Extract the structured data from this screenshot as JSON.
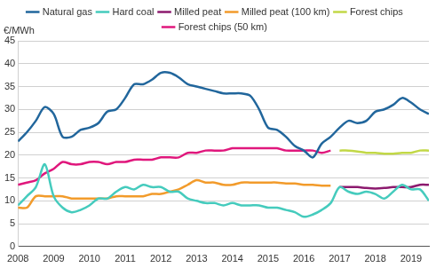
{
  "chart_data": {
    "type": "line",
    "ylabel": "€/MWh",
    "legend": "top",
    "grid": true,
    "xlim": [
      2008,
      2019.5
    ],
    "xticks": [
      2008,
      2009,
      2010,
      2011,
      2012,
      2013,
      2014,
      2015,
      2016,
      2017,
      2018,
      2019
    ],
    "ylim": [
      0,
      45
    ],
    "yticks": [
      0,
      5,
      10,
      15,
      20,
      25,
      30,
      35,
      40,
      45
    ],
    "x": [
      2008,
      2008.25,
      2008.5,
      2008.75,
      2009,
      2009.25,
      2009.5,
      2009.75,
      2010,
      2010.25,
      2010.5,
      2010.75,
      2011,
      2011.25,
      2011.5,
      2011.75,
      2012,
      2012.25,
      2012.5,
      2012.75,
      2013,
      2013.25,
      2013.5,
      2013.75,
      2014,
      2014.25,
      2014.5,
      2014.75,
      2015,
      2015.25,
      2015.5,
      2015.75,
      2016,
      2016.25,
      2016.5,
      2016.75,
      2017,
      2017.25,
      2017.5,
      2017.75,
      2018,
      2018.25,
      2018.5,
      2018.75,
      2019,
      2019.25,
      2019.5
    ],
    "series": [
      {
        "name": "Natural gas",
        "color": "#21669c",
        "line_style": "solid",
        "values": [
          23,
          25,
          27.5,
          30.5,
          29,
          24,
          24,
          25.5,
          26,
          27,
          29.5,
          30,
          32.5,
          35.5,
          35.5,
          36.5,
          38,
          38,
          37,
          35.5,
          35,
          34.5,
          34,
          33.5,
          33.5,
          33.5,
          33,
          30,
          26,
          25.5,
          24,
          22,
          21,
          19.5,
          22.5,
          24,
          26,
          27.5,
          27,
          27.5,
          29.5,
          30,
          31,
          32.5,
          31.5,
          30,
          29
        ]
      },
      {
        "name": "Hard coal",
        "color": "#45cbbd",
        "line_style": "solid",
        "values": [
          9,
          11,
          13,
          18,
          11,
          8.5,
          7.5,
          8,
          9,
          10.5,
          10.5,
          12,
          13,
          12.5,
          13.5,
          13,
          13,
          12,
          12,
          10.5,
          10,
          9.5,
          9.5,
          9,
          9.5,
          9,
          9,
          9,
          8.5,
          8.5,
          8,
          7.5,
          6.5,
          7,
          8,
          9.5,
          13,
          12,
          11.5,
          12,
          11.5,
          10.5,
          12,
          13.5,
          12.5,
          12.5,
          10
        ]
      },
      {
        "name": "Milled peat",
        "color": "#8c1a6e",
        "line_style": "solid",
        "values": [
          null,
          null,
          null,
          null,
          null,
          null,
          null,
          null,
          null,
          null,
          null,
          null,
          null,
          null,
          null,
          null,
          null,
          null,
          null,
          null,
          null,
          null,
          null,
          null,
          null,
          null,
          null,
          null,
          null,
          null,
          null,
          null,
          null,
          null,
          null,
          null,
          13,
          13,
          13,
          12.8,
          12.7,
          12.8,
          13,
          13,
          13,
          13.5,
          13.5
        ]
      },
      {
        "name": "Milled peat (100 km)",
        "color": "#f29b2b",
        "line_style": "solid",
        "values": [
          8.5,
          8.5,
          11,
          11,
          11,
          11,
          10.5,
          10.5,
          10.5,
          10.5,
          10.5,
          11,
          11,
          11,
          11,
          11.5,
          11.5,
          12,
          12.5,
          13.5,
          14.5,
          14,
          14,
          13.5,
          13.5,
          14,
          14,
          14,
          14,
          14,
          13.8,
          13.8,
          13.5,
          13.5,
          13.3,
          13.3,
          null,
          null,
          null,
          null,
          null,
          null,
          null,
          null,
          null,
          null,
          null
        ]
      },
      {
        "name": "Forest chips",
        "color": "#c2d847",
        "line_style": "solid",
        "values": [
          null,
          null,
          null,
          null,
          null,
          null,
          null,
          null,
          null,
          null,
          null,
          null,
          null,
          null,
          null,
          null,
          null,
          null,
          null,
          null,
          null,
          null,
          null,
          null,
          null,
          null,
          null,
          null,
          null,
          null,
          null,
          null,
          null,
          null,
          null,
          null,
          21,
          21,
          20.8,
          20.5,
          20.5,
          20.3,
          20.3,
          20.5,
          20.5,
          21,
          21
        ]
      },
      {
        "name": "Forest chips (50 km)",
        "color": "#e0177c",
        "line_style": "solid",
        "values": [
          13.5,
          14,
          14.5,
          16,
          17,
          18.5,
          18,
          18,
          18.5,
          18.5,
          18,
          18.5,
          18.5,
          19,
          19,
          19,
          19.5,
          19.5,
          19.5,
          20.5,
          20.5,
          21,
          21,
          21,
          21.5,
          21.5,
          21.5,
          21.5,
          21.5,
          21.5,
          21,
          21,
          21,
          21,
          20.5,
          21,
          null,
          null,
          null,
          null,
          null,
          null,
          null,
          null,
          null,
          null,
          null
        ]
      }
    ]
  }
}
